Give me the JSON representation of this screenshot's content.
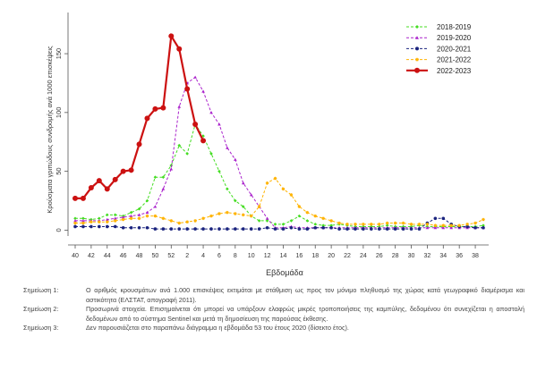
{
  "chart_data": {
    "type": "line",
    "xlabel": "Εβδομάδα",
    "ylabel": "Κρούσματα γριπώδους συνδρομής ανά 1000 επισκέψεις",
    "xticks": [
      "40",
      "42",
      "44",
      "46",
      "48",
      "50",
      "52",
      "2",
      "4",
      "6",
      "8",
      "10",
      "12",
      "14",
      "16",
      "18",
      "20",
      "22",
      "24",
      "26",
      "28",
      "30",
      "32",
      "34",
      "36",
      "38"
    ],
    "yticks": [
      0,
      50,
      100,
      150
    ],
    "ylim": [
      -5,
      185
    ],
    "legend_position": "top-right",
    "grid": false,
    "series": [
      {
        "name": "2018-2019",
        "color": "#44dd22",
        "marker": "diamond",
        "values": [
          10,
          10,
          9,
          10,
          13,
          13,
          12,
          15,
          18,
          25,
          45,
          45,
          55,
          72,
          65,
          90,
          80,
          65,
          50,
          35,
          25,
          20,
          12,
          8,
          8,
          5,
          5,
          8,
          12,
          8,
          5,
          4,
          4,
          5,
          4,
          3,
          3,
          3,
          3,
          4,
          3,
          3,
          3,
          4,
          3,
          3,
          3,
          3,
          3,
          3,
          3,
          4
        ]
      },
      {
        "name": "2019-2020",
        "color": "#aa22cc",
        "marker": "triangle",
        "values": [
          8,
          8,
          8,
          8,
          9,
          10,
          11,
          12,
          13,
          15,
          20,
          35,
          52,
          105,
          125,
          130,
          118,
          100,
          90,
          70,
          60,
          40,
          30,
          20,
          10,
          2,
          2,
          3,
          2,
          2,
          2,
          2,
          2,
          2,
          2,
          2,
          2,
          2,
          2,
          2,
          2,
          2,
          2,
          2,
          2,
          2,
          2,
          2,
          2,
          2,
          2,
          2
        ]
      },
      {
        "name": "2020-2021",
        "color": "#1a237e",
        "marker": "dot",
        "values": [
          3,
          3,
          3,
          3,
          3,
          3,
          2,
          2,
          2,
          2,
          1,
          1,
          1,
          1,
          1,
          1,
          1,
          1,
          1,
          1,
          1,
          1,
          1,
          1,
          2,
          1,
          1,
          2,
          1,
          1,
          2,
          2,
          2,
          1,
          1,
          1,
          1,
          1,
          1,
          1,
          1,
          1,
          1,
          1,
          6,
          10,
          10,
          5,
          3,
          3,
          2,
          2
        ]
      },
      {
        "name": "2021-2022",
        "color": "#ffb300",
        "marker": "star",
        "values": [
          6,
          6,
          7,
          7,
          7,
          8,
          9,
          10,
          10,
          12,
          12,
          10,
          8,
          6,
          7,
          8,
          10,
          12,
          14,
          15,
          14,
          13,
          12,
          20,
          40,
          44,
          35,
          30,
          20,
          15,
          12,
          10,
          8,
          6,
          5,
          5,
          5,
          5,
          5,
          6,
          6,
          6,
          5,
          5,
          5,
          4,
          4,
          4,
          4,
          5,
          6,
          9
        ]
      },
      {
        "name": "2022-2023",
        "color": "#cc1111",
        "marker": "dot",
        "values": [
          27,
          27,
          36,
          42,
          35,
          43,
          50,
          51,
          73,
          95,
          103,
          104,
          165,
          154,
          120,
          90,
          76
        ]
      }
    ]
  },
  "notes": [
    {
      "label": "Σημείωση 1:",
      "text": "Ο αριθμός κρουσμάτων ανά 1.000 επισκέψεις εκτιμάται με στάθμιση ως προς τον μόνιμο πληθυσμό της χώρας κατά γεωγραφικό διαμέρισμα και αστικότητα (ΕΛΣΤΑΤ, απογραφή 2011)."
    },
    {
      "label": "Σημείωση 2:",
      "text": "Προσωρινά στοιχεία. Επισημαίνεται ότι μπορεί να υπάρξουν ελαφρώς μικρές τροποποιήσεις της καμπύλης, δεδομένου ότι συνεχίζεται η αποστολή δεδομένων από το σύστημα Sentinel και μετά τη δημοσίευση της παρούσας έκθεσης."
    },
    {
      "label": "Σημείωση 3:",
      "text": "Δεν παρουσιάζεται στο παραπάνω διάγραμμα η εβδομάδα 53 του έτους 2020 (δίσεκτο έτος)."
    }
  ]
}
